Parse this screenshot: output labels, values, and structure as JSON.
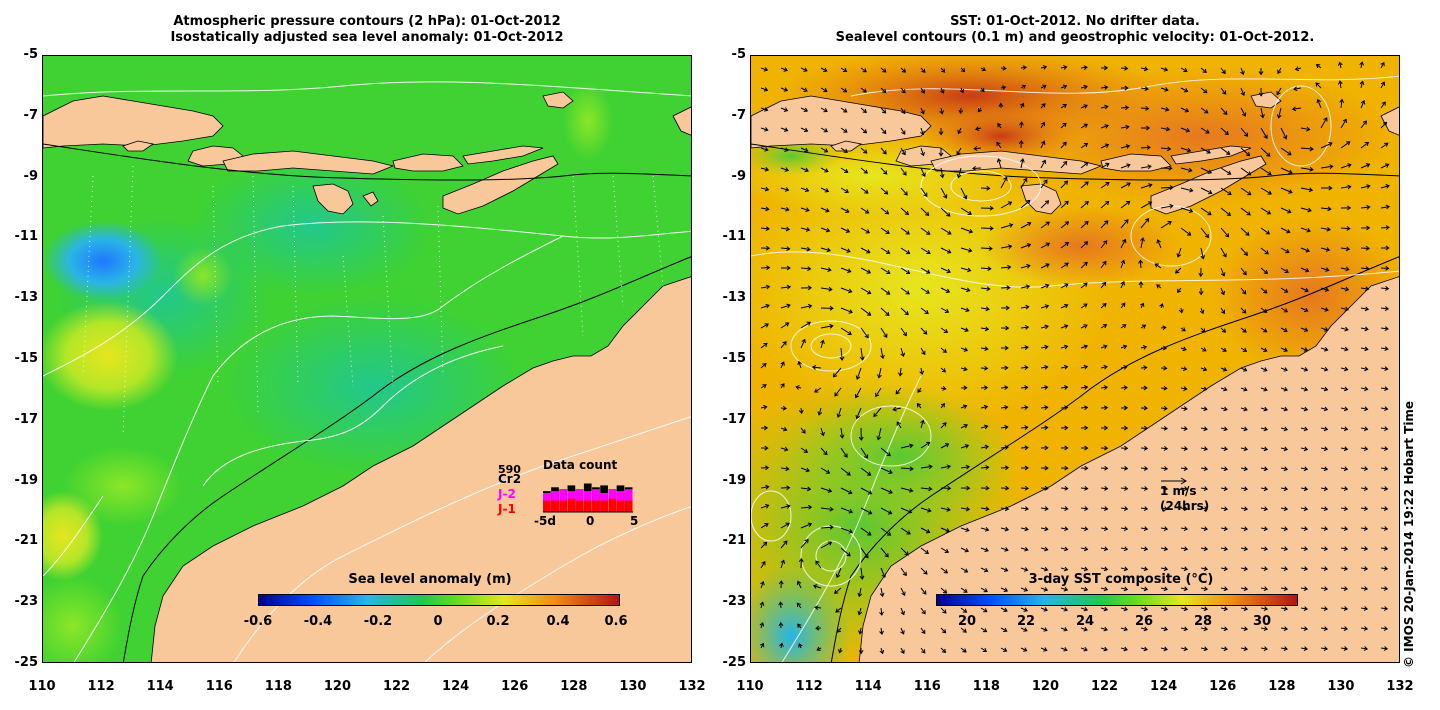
{
  "left_panel": {
    "title_line1": "Atmospheric pressure contours (2 hPa): 01-Oct-2012",
    "title_line2": "Isostatically adjusted sea level anomaly: 01-Oct-2012",
    "colorbar_label": "Sea level anomaly (m)",
    "colorbar_ticks": [
      "-0.6",
      "-0.4",
      "-0.2",
      "0",
      "0.2",
      "0.4",
      "0.6"
    ],
    "datacount": {
      "title": "Data count",
      "max_label": "590",
      "series": [
        {
          "name": "Cr2",
          "color": "#000000"
        },
        {
          "name": "J-2",
          "color": "#ff00ff"
        },
        {
          "name": "J-1",
          "color": "#ff0000"
        }
      ],
      "x_ticks": [
        "-5d",
        "0",
        "5"
      ],
      "counts": [
        [
          0.55,
          0.65,
          0.6,
          0.7,
          0.6,
          0.75,
          0.65,
          0.7,
          0.6,
          0.7,
          0.65
        ],
        [
          0.5,
          0.55,
          0.6,
          0.55,
          0.6,
          0.55,
          0.6,
          0.5,
          0.6,
          0.55,
          0.6
        ],
        [
          0.3,
          0.3,
          0.3,
          0.35,
          0.3,
          0.3,
          0.3,
          0.3,
          0.35,
          0.3,
          0.3
        ]
      ]
    }
  },
  "right_panel": {
    "title_line1": "SST: 01-Oct-2012. No drifter data.",
    "title_line2": "Sealevel contours (0.1 m) and geostrophic velocity: 01-Oct-2012.",
    "colorbar_label": "3-day SST composite (°C)",
    "colorbar_ticks": [
      "20",
      "22",
      "24",
      "26",
      "28",
      "30"
    ],
    "velocity_scale_line1": "1 m/s",
    "velocity_scale_line2": "(24hrs)"
  },
  "axes": {
    "y_ticks": [
      "-5",
      "-7",
      "-9",
      "-11",
      "-13",
      "-15",
      "-17",
      "-19",
      "-21",
      "-23",
      "-25"
    ],
    "x_ticks": [
      "110",
      "112",
      "114",
      "116",
      "118",
      "120",
      "122",
      "124",
      "126",
      "128",
      "130",
      "132"
    ]
  },
  "colors": {
    "land": "#f8c89a",
    "sla_background": "#3fd232",
    "sst_background": "#f0b400"
  },
  "copyright": "© IMOS 20-Jan-2014 19:22 Hobart Time"
}
